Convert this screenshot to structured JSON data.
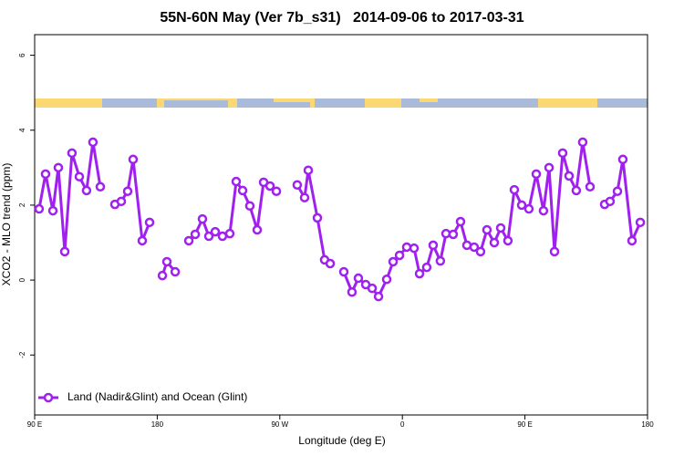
{
  "chart_data": {
    "type": "line",
    "title": "55N-60N May (Ver 7b_s31)   2014-09-06 to 2017-03-31",
    "xlabel": "Longitude (deg E)",
    "ylabel": "XCO2 - MLO trend (ppm)",
    "xlim": [
      90,
      540
    ],
    "ylim": [
      -3.6,
      6.55
    ],
    "xticks": [
      {
        "value": 90,
        "label": "90 E"
      },
      180,
      {
        "value": 270,
        "label": "90 W"
      },
      {
        "value": 360,
        "label": "0"
      },
      {
        "value": 450,
        "label": "90 E"
      },
      {
        "value": 540,
        "label": "180"
      }
    ],
    "yticks": [
      -2,
      0,
      2,
      4,
      6
    ],
    "legend": "bottomleft",
    "x": [
      93.3,
      98.0,
      103.4,
      107.4,
      112.1,
      117.4,
      122.8,
      128.1,
      132.8,
      138.2,
      143.5,
      148.9,
      153.6,
      158.3,
      162.3,
      169.0,
      174.4,
      179,
      183.8,
      187.1,
      193.2,
      198,
      203.2,
      207.9,
      213.2,
      217.9,
      222.6,
      227.9,
      233.3,
      238.0,
      242.7,
      248.0,
      253.4,
      258.1,
      262.8,
      267.5,
      275,
      282.8,
      288.2,
      290.9,
      297.6,
      302.9,
      307.0,
      312,
      317.0,
      323.0,
      327.7,
      333.1,
      337.8,
      342.5,
      348.5,
      353.2,
      357.9,
      363.2,
      368.6,
      372.6,
      377.9,
      382.6,
      387.9,
      392.0,
      397.3,
      402.7,
      407.4,
      412.7,
      417.4,
      422.1,
      427.5,
      432.2,
      437.5,
      442.2,
      447.6,
      452.9,
      458.3,
      463.6,
      467.7,
      471.7,
      477.7,
      482.4,
      487.7,
      492.4,
      497.8,
      503,
      508.5,
      512.5,
      517.9,
      521.9,
      528.6,
      534.7
    ],
    "series": [
      {
        "name": "Land (Nadir&Glint) and Ocean (Glint)",
        "color": "#a020f0",
        "values": [
          1.9,
          2.83,
          1.85,
          3.0,
          0.76,
          3.39,
          2.76,
          2.39,
          3.68,
          2.49,
          null,
          2.02,
          2.1,
          2.37,
          3.22,
          1.05,
          1.54,
          null,
          0.12,
          0.49,
          0.22,
          null,
          1.05,
          1.22,
          1.63,
          1.17,
          1.29,
          1.17,
          1.24,
          2.63,
          2.39,
          1.98,
          1.34,
          2.61,
          2.51,
          2.37,
          null,
          2.54,
          2.2,
          2.93,
          1.66,
          0.54,
          0.44,
          null,
          0.22,
          -0.32,
          0.05,
          -0.12,
          -0.22,
          -0.44,
          0.02,
          0.49,
          0.66,
          0.88,
          0.85,
          0.17,
          0.34,
          0.93,
          0.51,
          1.24,
          1.22,
          1.56,
          0.93,
          0.88,
          0.76,
          1.34,
          1.0,
          1.39,
          1.05,
          2.41,
          2.0,
          1.9,
          2.83,
          1.85,
          3.0,
          0.76,
          3.39,
          2.78,
          2.39,
          3.68,
          2.49,
          null,
          2.02,
          2.1,
          2.37,
          3.22,
          1.05,
          1.54
        ]
      }
    ]
  }
}
